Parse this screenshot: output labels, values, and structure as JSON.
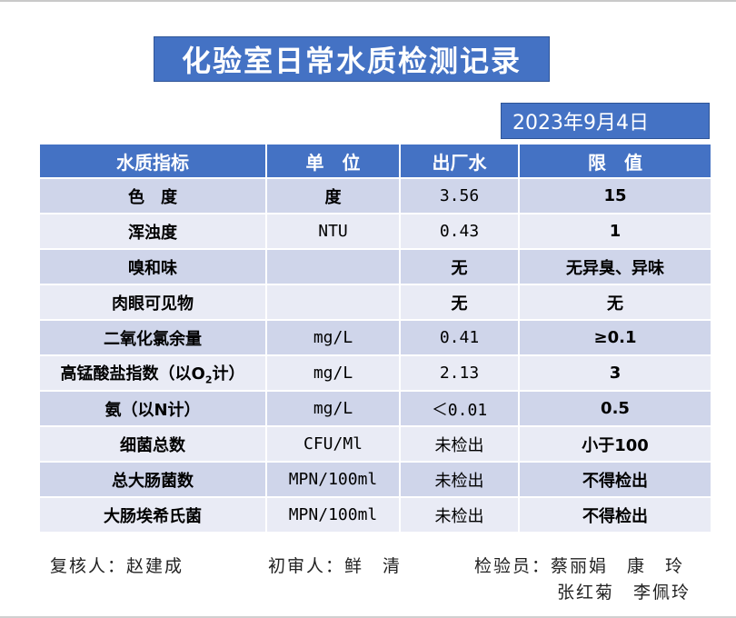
{
  "title": "化验室日常水质检测记录",
  "date": "2023年9月4日",
  "columns": [
    "水质指标",
    "单　位",
    "出厂水",
    "限　值"
  ],
  "rows": [
    {
      "name": "色　度",
      "unit": "度",
      "value": "3.56",
      "limit": "15"
    },
    {
      "name": "浑浊度",
      "unit": "NTU",
      "value": "0.43",
      "limit": "1"
    },
    {
      "name": "嗅和味",
      "unit": "",
      "value": "无",
      "limit": "无异臭、异味"
    },
    {
      "name": "肉眼可见物",
      "unit": "",
      "value": "无",
      "limit": "无"
    },
    {
      "name": "二氧化氯余量",
      "unit": "mg/L",
      "value": "0.41",
      "limit": "≥0.1"
    },
    {
      "name_pre": "高锰酸盐指数（以O",
      "name_sub": "2",
      "name_post": "计）",
      "unit": "mg/L",
      "value": "2.13",
      "limit": "3"
    },
    {
      "name": "氨（以N计）",
      "unit": "mg/L",
      "value": "＜0.01",
      "limit": "0.5"
    },
    {
      "name": "细菌总数",
      "unit": "CFU/Ml",
      "value": "未检出",
      "limit": "小于100"
    },
    {
      "name": "总大肠菌数",
      "unit": "MPN/100ml",
      "value": "未检出",
      "limit": "不得检出"
    },
    {
      "name": "大肠埃希氏菌",
      "unit": "MPN/100ml",
      "value": "未检出",
      "limit": "不得检出"
    }
  ],
  "footer": {
    "reviewer": "复核人：赵建成",
    "first_reviewer": "初审人：鲜　清",
    "inspectors_line1": "检验员：蔡丽娟　康　玲",
    "inspectors_line2": "张红菊　李佩玲"
  }
}
